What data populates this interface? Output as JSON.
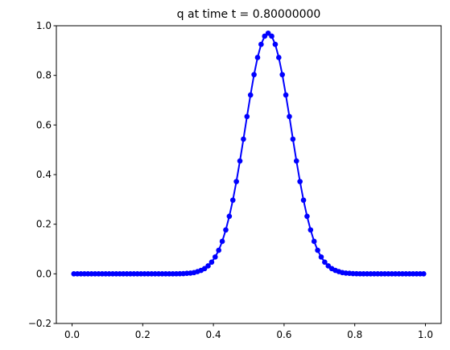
{
  "chart_data": {
    "type": "line",
    "title": "q at time t =     0.80000000",
    "x": [
      0.005,
      0.015,
      0.025,
      0.035,
      0.045,
      0.055,
      0.065,
      0.075,
      0.085,
      0.095,
      0.105,
      0.115,
      0.125,
      0.135,
      0.145,
      0.155,
      0.165,
      0.175,
      0.185,
      0.195,
      0.205,
      0.215,
      0.225,
      0.235,
      0.245,
      0.255,
      0.265,
      0.275,
      0.285,
      0.295,
      0.305,
      0.315,
      0.325,
      0.335,
      0.345,
      0.355,
      0.365,
      0.375,
      0.385,
      0.395,
      0.405,
      0.415,
      0.425,
      0.435,
      0.445,
      0.455,
      0.465,
      0.475,
      0.485,
      0.495,
      0.505,
      0.515,
      0.525,
      0.535,
      0.545,
      0.555,
      0.565,
      0.575,
      0.585,
      0.595,
      0.605,
      0.615,
      0.625,
      0.635,
      0.645,
      0.655,
      0.665,
      0.675,
      0.685,
      0.695,
      0.705,
      0.715,
      0.725,
      0.735,
      0.745,
      0.755,
      0.765,
      0.775,
      0.785,
      0.795,
      0.805,
      0.815,
      0.825,
      0.835,
      0.845,
      0.855,
      0.865,
      0.875,
      0.885,
      0.895,
      0.905,
      0.915,
      0.925,
      0.935,
      0.945,
      0.955,
      0.965,
      0.975,
      0.985,
      0.995
    ],
    "series": [
      {
        "color": "#0000ff",
        "values": [
          0,
          0,
          0,
          0,
          0,
          0,
          0,
          0,
          0,
          0,
          0,
          0,
          0,
          0,
          0,
          0,
          0,
          0,
          0,
          0,
          0,
          0,
          0,
          0,
          0,
          0,
          0,
          0,
          0.0002,
          0.0003,
          0.0006,
          0.001,
          0.002,
          0.003,
          0.005,
          0.009,
          0.014,
          0.021,
          0.032,
          0.047,
          0.068,
          0.095,
          0.131,
          0.177,
          0.232,
          0.297,
          0.372,
          0.455,
          0.543,
          0.634,
          0.721,
          0.803,
          0.872,
          0.925,
          0.958,
          0.97,
          0.958,
          0.925,
          0.872,
          0.803,
          0.721,
          0.634,
          0.543,
          0.455,
          0.372,
          0.297,
          0.232,
          0.177,
          0.131,
          0.095,
          0.068,
          0.047,
          0.032,
          0.021,
          0.014,
          0.009,
          0.005,
          0.003,
          0.002,
          0.001,
          0.0006,
          0.0003,
          0.0002,
          0,
          0,
          0,
          0,
          0,
          0,
          0,
          0,
          0,
          0,
          0,
          0,
          0,
          0,
          0,
          0,
          0
        ]
      }
    ],
    "xlim": [
      -0.0445,
      1.0445
    ],
    "xticks": [
      {
        "value": 0,
        "label": "0.0"
      },
      0.2,
      0.4,
      0.6,
      0.8,
      {
        "value": 1,
        "label": "1.0"
      }
    ],
    "ylim": [
      -0.2,
      1.0
    ],
    "yticks": [
      {
        "value": -0.2,
        "label": "−0.2"
      },
      {
        "value": 0,
        "label": "0.0"
      },
      0.2,
      0.4,
      0.6,
      0.8,
      {
        "value": 1,
        "label": "1.0"
      }
    ],
    "grid": false
  }
}
